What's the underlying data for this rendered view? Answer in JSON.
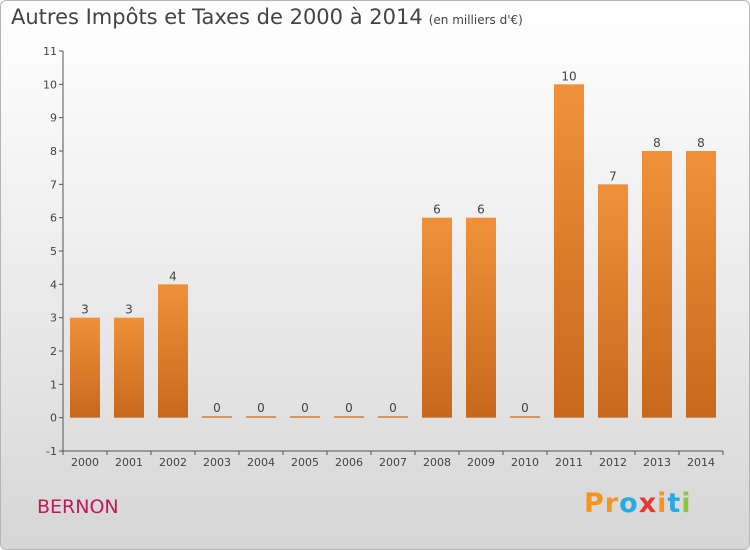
{
  "title": "Autres Impôts et Taxes de 2000 à 2014",
  "unit": "(en milliers d'€)",
  "commune": "BERNON",
  "brand": {
    "letters": [
      "P",
      "r",
      "o",
      "x",
      "i",
      "t",
      "i"
    ],
    "colors": [
      "#f7931e",
      "#f7931e",
      "#29abe2",
      "#e53935",
      "#f7931e",
      "#29abe2",
      "#8cc63f"
    ]
  },
  "colors": {
    "bar": "#f0913a",
    "bar_dark": "#c8681c",
    "title": "#444444",
    "commune": "#c2185b"
  },
  "chart_data": {
    "type": "bar",
    "title": "Autres Impôts et Taxes de 2000 à 2014",
    "subtitle": "(en milliers d'€)",
    "xlabel": "",
    "ylabel": "",
    "categories": [
      "2000",
      "2001",
      "2002",
      "2003",
      "2004",
      "2005",
      "2006",
      "2007",
      "2008",
      "2009",
      "2010",
      "2011",
      "2012",
      "2013",
      "2014"
    ],
    "values": [
      3,
      3,
      4,
      0,
      0,
      0,
      0,
      0,
      6,
      6,
      0,
      10,
      7,
      8,
      8
    ],
    "value_labels": [
      "3",
      "3",
      "4",
      "0",
      "0",
      "0",
      "0",
      "0",
      "6",
      "6",
      "0",
      "10",
      "7",
      "8",
      "8"
    ],
    "ylim": [
      -1,
      11
    ],
    "yticks": [
      -1,
      0,
      1,
      2,
      3,
      4,
      5,
      6,
      7,
      8,
      9,
      10,
      11
    ],
    "ytick_labels": [
      "-1",
      "0",
      "1",
      "2",
      "3",
      "4",
      "5",
      "6",
      "7",
      "8",
      "9",
      "10",
      "11"
    ],
    "grid": false,
    "legend": "none"
  }
}
